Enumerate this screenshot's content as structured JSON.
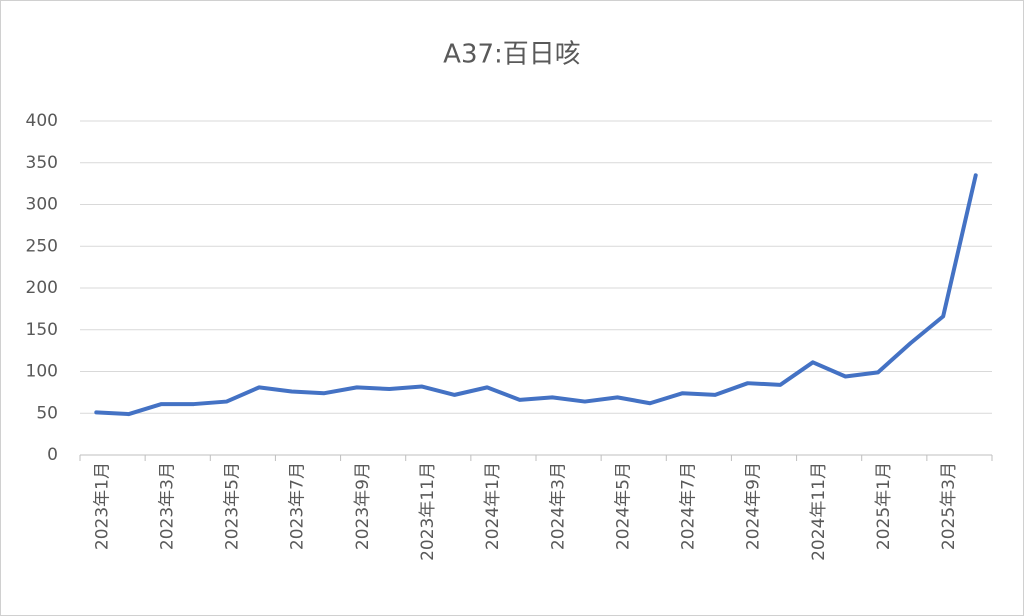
{
  "chart_data": {
    "type": "line",
    "title": "A37:百日咳",
    "categories": [
      "2023年1月",
      null,
      "2023年3月",
      null,
      "2023年5月",
      null,
      "2023年7月",
      null,
      "2023年9月",
      null,
      "2023年11月",
      null,
      "2024年1月",
      null,
      "2024年3月",
      null,
      "2024年5月",
      null,
      "2024年7月",
      null,
      "2024年9月",
      null,
      "2024年11月",
      null,
      "2025年1月",
      null,
      "2025年3月",
      null
    ],
    "series": [
      {
        "name": "A37:百日咳",
        "color": "#4472c4",
        "values": [
          51,
          49,
          61,
          61,
          64,
          81,
          76,
          74,
          81,
          79,
          82,
          72,
          81,
          66,
          69,
          64,
          69,
          62,
          74,
          72,
          86,
          84,
          111,
          94,
          99,
          134,
          166,
          335
        ]
      }
    ],
    "ylim": [
      0,
      400
    ],
    "yticks": [
      0,
      50,
      100,
      150,
      200,
      250,
      300,
      350,
      400
    ],
    "grid": true
  }
}
